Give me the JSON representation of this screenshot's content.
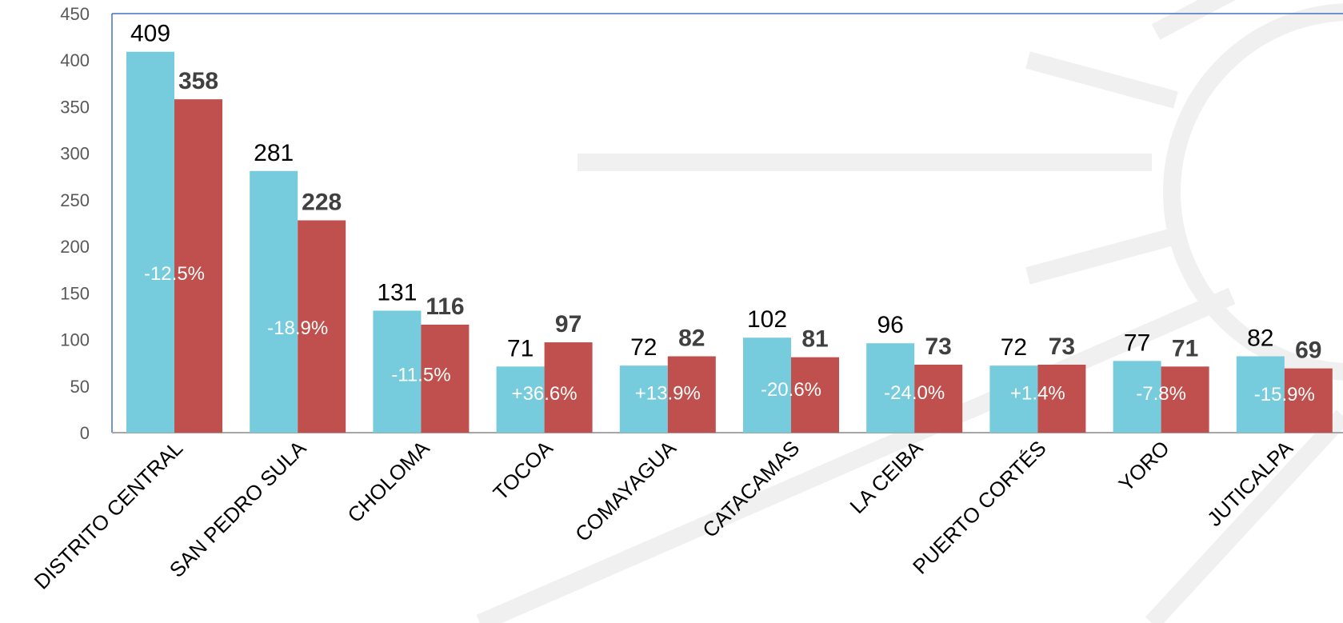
{
  "chart_data": {
    "type": "bar",
    "categories": [
      "DISTRITO CENTRAL",
      "SAN PEDRO SULA",
      "CHOLOMA",
      "TOCOA",
      "COMAYAGUA",
      "CATACAMAS",
      "LA CEIBA",
      "PUERTO CORTÉS",
      "YORO",
      "JUTICALPA"
    ],
    "series": [
      {
        "values": [
          409,
          281,
          131,
          71,
          72,
          102,
          96,
          72,
          77,
          82
        ],
        "color": "#76CBDC"
      },
      {
        "values": [
          358,
          228,
          116,
          97,
          82,
          81,
          73,
          73,
          71,
          69
        ],
        "color": "#C0504D"
      }
    ],
    "change_labels": [
      "-12.5%",
      "-18.9%",
      "-11.5%",
      "+36.6%",
      "+13.9%",
      "-20.6%",
      "-24.0%",
      "+1.4%",
      "-7.8%",
      "-15.9%"
    ],
    "yticks": [
      "0",
      "50",
      "100",
      "150",
      "200",
      "250",
      "300",
      "350",
      "400",
      "450"
    ],
    "ylim": [
      0,
      450
    ],
    "grid": false,
    "legend": "none",
    "title": "",
    "xlabel": "",
    "ylabel": ""
  }
}
